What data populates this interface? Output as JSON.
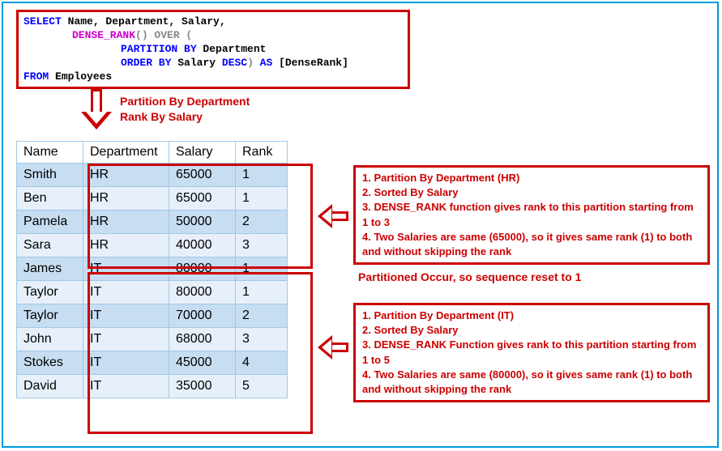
{
  "sql": {
    "select": "SELECT",
    "fields": " Name, Department, Salary,",
    "fn": "DENSE_RANK",
    "over": "() OVER (",
    "partition": "PARTITION BY",
    "partition_field": " Department",
    "orderby": "ORDER BY",
    "orderby_field": " Salary ",
    "desc": "DESC",
    "close": ") ",
    "as": "AS",
    "alias": " [DenseRank]",
    "from": "FROM",
    "table": " Employees"
  },
  "down_label": {
    "l1": "Partition By Department",
    "l2": "Rank By Salary"
  },
  "columns": [
    "Name",
    "Department",
    "Salary",
    "Rank"
  ],
  "rows": [
    {
      "name": "Smith",
      "dept": "HR",
      "salary": "65000",
      "rank": "1",
      "cls": "shade"
    },
    {
      "name": "Ben",
      "dept": "HR",
      "salary": "65000",
      "rank": "1",
      "cls": "light"
    },
    {
      "name": "Pamela",
      "dept": "HR",
      "salary": "50000",
      "rank": "2",
      "cls": "shade"
    },
    {
      "name": "Sara",
      "dept": "HR",
      "salary": "40000",
      "rank": "3",
      "cls": "light"
    },
    {
      "name": "James",
      "dept": "IT",
      "salary": "80000",
      "rank": "1",
      "cls": "shade"
    },
    {
      "name": "Taylor",
      "dept": "IT",
      "salary": "80000",
      "rank": "1",
      "cls": "light"
    },
    {
      "name": "Taylor",
      "dept": "IT",
      "salary": "70000",
      "rank": "2",
      "cls": "shade"
    },
    {
      "name": "John",
      "dept": "IT",
      "salary": "68000",
      "rank": "3",
      "cls": "light"
    },
    {
      "name": "Stokes",
      "dept": "IT",
      "salary": "45000",
      "rank": "4",
      "cls": "shade"
    },
    {
      "name": "David",
      "dept": "IT",
      "salary": "35000",
      "rank": "5",
      "cls": "light"
    }
  ],
  "annot_hr": {
    "l1": "1. Partition By Department (HR)",
    "l2": "2. Sorted By Salary",
    "l3": "3. DENSE_RANK function gives rank to this partition starting from 1 to 3",
    "l4": "4. Two Salaries are same (65000), so it gives same rank (1) to both and without skipping the rank"
  },
  "mid_label": "Partitioned Occur, so sequence reset to 1",
  "annot_it": {
    "l1": "1. Partition By Department (IT)",
    "l2": "2. Sorted By Salary",
    "l3": "3. DENSE_RANK Function gives rank to this partition starting from 1 to 5",
    "l4": "4. Two Salaries are same (80000), so it gives same rank (1) to both and without skipping the rank"
  },
  "colors": {
    "border_outer": "#0099dd",
    "red": "#cc0000",
    "keyword": "#0000ff",
    "function": "#cc00cc",
    "grey": "#888888",
    "row_shade": "#c7ddf1",
    "row_light": "#e7f0fa",
    "cell_border": "#9fc8e8"
  }
}
